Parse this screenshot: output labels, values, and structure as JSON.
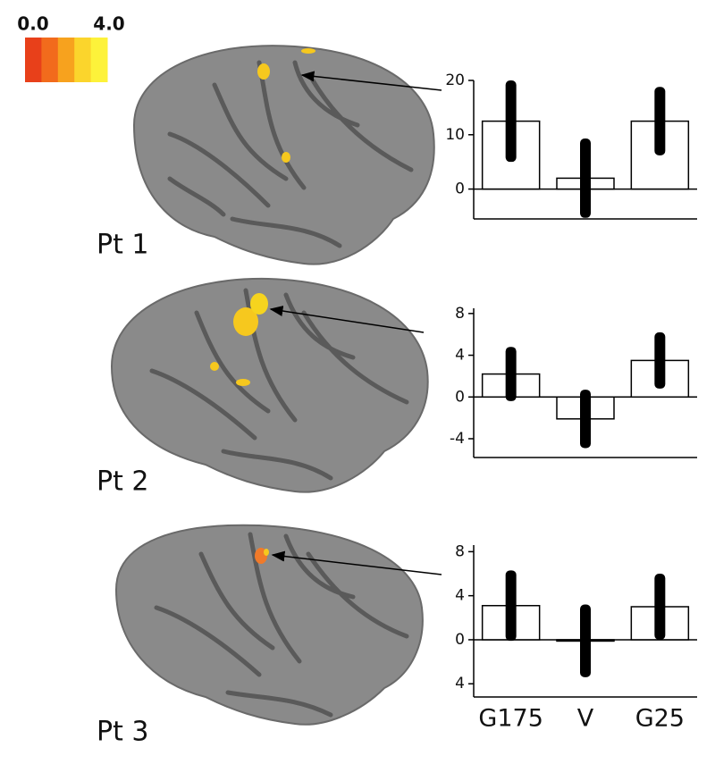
{
  "colorbar": {
    "ticks": [
      {
        "value": 0,
        "label": "0.0"
      },
      {
        "value": 4,
        "label": "4.0"
      }
    ],
    "range": [
      0,
      4
    ],
    "colors": [
      "#e8401a",
      "#f26b1c",
      "#f7a21e",
      "#fbd52c",
      "#fdf23a"
    ]
  },
  "chart_data": [
    {
      "type": "bar",
      "panel_label": "Pt 1",
      "categories": [
        null,
        null,
        null
      ],
      "values": [
        12.5,
        2,
        12.5
      ],
      "errors": [
        7.5,
        7.3,
        6.3
      ],
      "color": "#ffffff",
      "error_color": "#000000",
      "ylim": [
        -5.5,
        20
      ],
      "yticks": [
        0,
        10,
        20
      ]
    },
    {
      "type": "bar",
      "panel_label": "Pt 2",
      "categories": [
        null,
        null,
        null
      ],
      "values": [
        2.2,
        -2.1,
        3.5
      ],
      "errors": [
        2.6,
        2.8,
        2.7
      ],
      "color": "#ffffff",
      "error_color": "#000000",
      "ylim": [
        -5.8,
        8.5
      ],
      "yticks": [
        -4,
        0,
        4,
        8
      ]
    },
    {
      "type": "bar",
      "panel_label": "Pt 3",
      "categories": [
        "G175",
        "V",
        "G25"
      ],
      "values": [
        3.1,
        -0.1,
        3.0
      ],
      "errors": [
        3.2,
        3.3,
        3.0
      ],
      "color": "#ffffff",
      "error_color": "#000000",
      "ylim": [
        -5.2,
        8.6
      ],
      "yticks": [
        {
          "value": -4,
          "label": "4"
        },
        0,
        4,
        8
      ]
    }
  ]
}
